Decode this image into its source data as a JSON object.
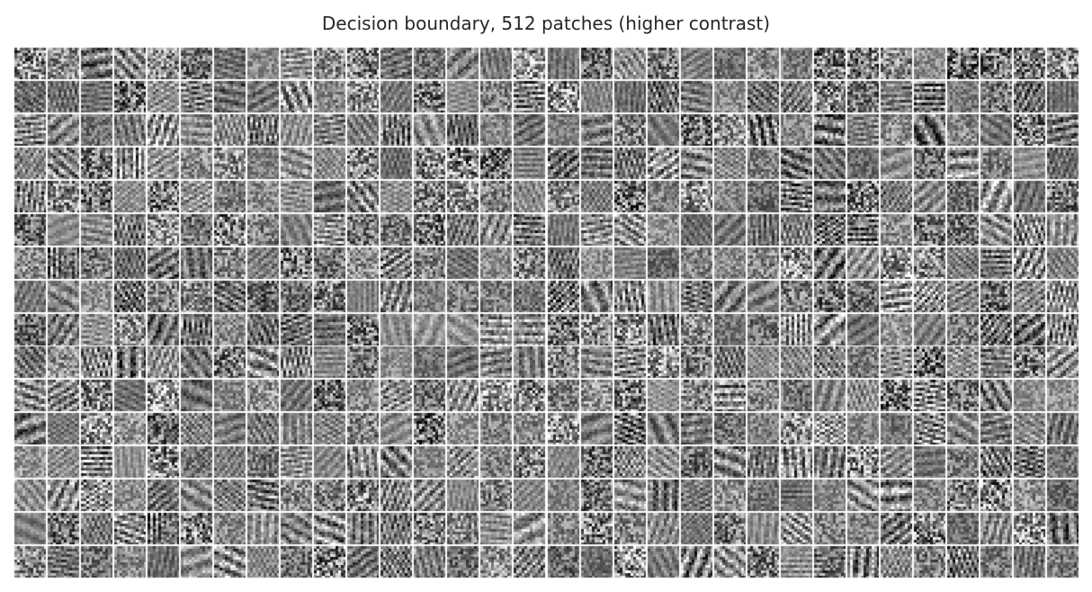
{
  "figure": {
    "title": "Decision boundary, 512 patches (higher contrast)",
    "grid": {
      "rows": 16,
      "columns": 32,
      "patch_count": 512
    },
    "colormap": "grayscale",
    "colors": {
      "background": "#ffffff",
      "title_text": "#262626",
      "gap": "#ffffff"
    }
  }
}
